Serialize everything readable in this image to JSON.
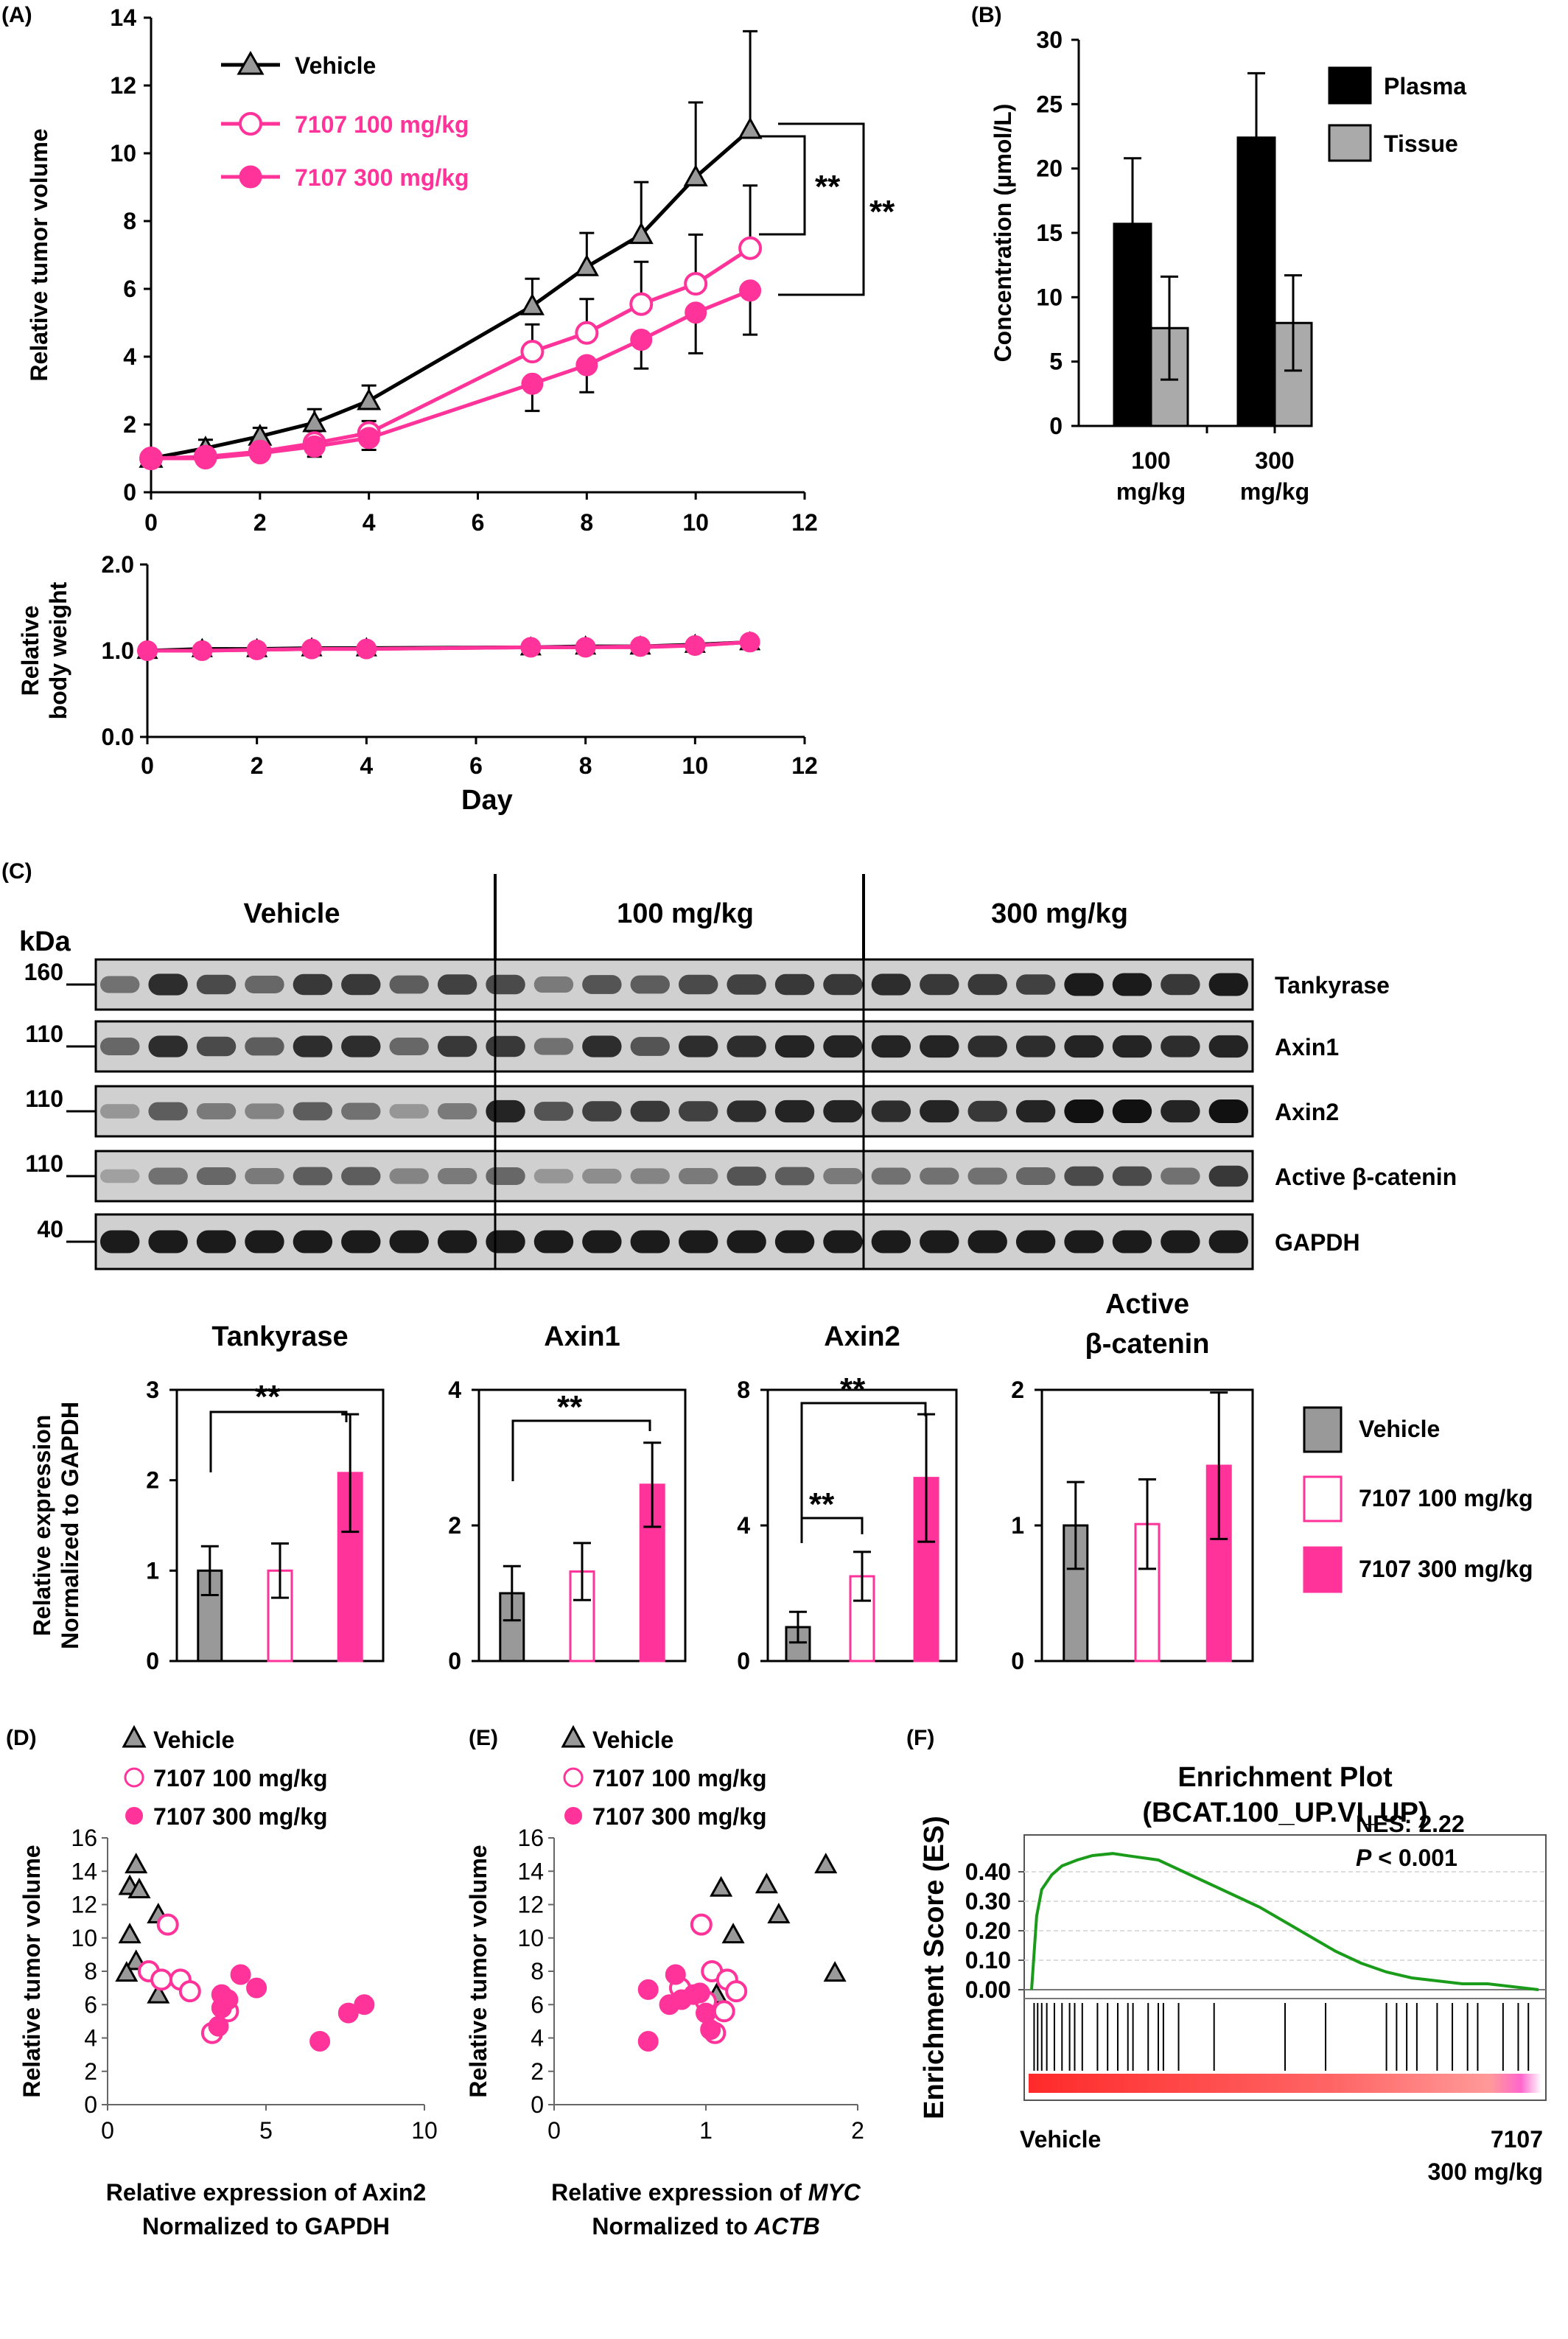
{
  "colors": {
    "vehicle": "#999999",
    "pink": "#ff3399",
    "black": "#000000",
    "gsea": "#1a9c1a"
  },
  "panels": {
    "A": "(A)",
    "B": "(B)",
    "C": "(C)",
    "D": "(D)",
    "E": "(E)",
    "F": "(F)"
  },
  "legend": {
    "vehicle": "Vehicle",
    "d100": "7107 100 mg/kg",
    "d300": "7107 300 mg/kg"
  },
  "sig": "**",
  "chart_data": [
    {
      "id": "A_tumor",
      "type": "line",
      "xlabel": "",
      "ylabel": "Relative tumor volume",
      "xlim": [
        0,
        12
      ],
      "ylim": [
        0,
        14
      ],
      "xticks": [
        "0",
        "2",
        "4",
        "6",
        "8",
        "10",
        "12"
      ],
      "yticks": [
        "0",
        "2",
        "4",
        "6",
        "8",
        "10",
        "12",
        "14"
      ],
      "x": [
        0,
        1,
        2,
        3,
        4,
        7,
        8,
        9,
        10,
        11
      ],
      "series": [
        {
          "name": "Vehicle",
          "values": [
            1.0,
            1.3,
            1.65,
            2.05,
            2.7,
            5.5,
            6.65,
            7.6,
            9.3,
            10.7
          ],
          "err": [
            0.1,
            0.25,
            0.25,
            0.4,
            0.45,
            0.8,
            1.0,
            1.55,
            2.2,
            2.9
          ]
        },
        {
          "name": "7107 100 mg/kg",
          "values": [
            1.0,
            1.05,
            1.2,
            1.45,
            1.75,
            4.15,
            4.7,
            5.55,
            6.15,
            7.2
          ],
          "err": [
            0.1,
            0.2,
            0.2,
            0.35,
            0.35,
            0.8,
            1.0,
            1.25,
            1.45,
            1.85
          ]
        },
        {
          "name": "7107 300 mg/kg",
          "values": [
            1.0,
            1.0,
            1.15,
            1.35,
            1.6,
            3.2,
            3.75,
            4.5,
            5.3,
            5.95
          ],
          "err": [
            0.1,
            0.2,
            0.2,
            0.3,
            0.35,
            0.8,
            0.8,
            0.85,
            1.2,
            1.3
          ]
        }
      ]
    },
    {
      "id": "A_bodyweight",
      "type": "line",
      "xlabel": "Day",
      "ylabel": "Relative body weight",
      "ylabel_lines": [
        "Relative",
        "body weight"
      ],
      "xlim": [
        0,
        12
      ],
      "ylim": [
        0,
        2
      ],
      "xticks": [
        "0",
        "2",
        "4",
        "6",
        "8",
        "10",
        "12"
      ],
      "yticks": [
        "0.0",
        "1.0",
        "2.0"
      ],
      "x": [
        0,
        1,
        2,
        3,
        4,
        7,
        8,
        9,
        10,
        11
      ],
      "series": [
        {
          "name": "Vehicle",
          "values": [
            1.0,
            1.02,
            1.02,
            1.03,
            1.03,
            1.04,
            1.05,
            1.05,
            1.07,
            1.1
          ]
        },
        {
          "name": "7107 100 mg/kg",
          "values": [
            1.0,
            1.0,
            1.01,
            1.02,
            1.02,
            1.04,
            1.04,
            1.05,
            1.06,
            1.1
          ]
        },
        {
          "name": "7107 300 mg/kg",
          "values": [
            1.0,
            1.0,
            1.01,
            1.02,
            1.02,
            1.04,
            1.04,
            1.04,
            1.06,
            1.1
          ]
        }
      ]
    },
    {
      "id": "B",
      "type": "bar",
      "ylabel": "Concentration (µmol/L)",
      "ylim": [
        0,
        30
      ],
      "yticks": [
        "0",
        "5",
        "10",
        "15",
        "20",
        "25",
        "30"
      ],
      "categories": [
        [
          "100",
          "mg/kg"
        ],
        [
          "300",
          "mg/kg"
        ]
      ],
      "series": [
        {
          "name": "Plasma",
          "values": [
            15.7,
            22.4
          ],
          "err": [
            5.1,
            5.0
          ]
        },
        {
          "name": "Tissue",
          "values": [
            7.6,
            8.0
          ],
          "err": [
            4.0,
            3.7
          ]
        }
      ]
    },
    {
      "id": "C_blot",
      "type": "table",
      "groups": [
        "Vehicle",
        "100 mg/kg",
        "300 mg/kg"
      ],
      "kda_label": "kDa",
      "bands": [
        {
          "kda": "160",
          "name": "Tankyrase"
        },
        {
          "kda": "110",
          "name": "Axin1"
        },
        {
          "kda": "110",
          "name": "Axin2"
        },
        {
          "kda": "110",
          "name": "Active β-catenin"
        },
        {
          "kda": "40",
          "name": "GAPDH"
        }
      ]
    },
    {
      "id": "C_quant",
      "type": "bar",
      "ylabel_lines": [
        "Relative expression",
        "Normalized to GAPDH"
      ],
      "categories": [
        "Vehicle",
        "7107 100 mg/kg",
        "7107 300 mg/kg"
      ],
      "subplots": [
        {
          "title": [
            "Tankyrase"
          ],
          "ylim": [
            0,
            3
          ],
          "yticks": [
            "0",
            "1",
            "2",
            "3"
          ],
          "values": [
            1.0,
            1.0,
            2.08
          ],
          "err": [
            0.27,
            0.3,
            0.65
          ]
        },
        {
          "title": [
            "Axin1"
          ],
          "ylim": [
            0,
            4
          ],
          "yticks": [
            "0",
            "2",
            "4"
          ],
          "values": [
            1.0,
            1.32,
            2.6
          ],
          "err": [
            0.4,
            0.42,
            0.62
          ]
        },
        {
          "title": [
            "Axin2"
          ],
          "ylim": [
            0,
            8
          ],
          "yticks": [
            "0",
            "4",
            "8"
          ],
          "values": [
            1.0,
            2.5,
            5.4
          ],
          "err": [
            0.45,
            0.72,
            1.88
          ]
        },
        {
          "title": [
            "Active",
            "β-catenin"
          ],
          "ylim": [
            0,
            2
          ],
          "yticks": [
            "0",
            "1",
            "2"
          ],
          "values": [
            1.0,
            1.01,
            1.44
          ],
          "err": [
            0.32,
            0.33,
            0.54
          ]
        }
      ]
    },
    {
      "id": "D",
      "type": "scatter",
      "xlabel_lines": [
        "Relative expression of Axin2",
        "Normalized to GAPDH"
      ],
      "ylabel": "Relative tumor volume",
      "xlim": [
        0,
        10
      ],
      "ylim": [
        0,
        16
      ],
      "xticks": [
        "0",
        "5",
        "10"
      ],
      "yticks": [
        "0",
        "2",
        "4",
        "6",
        "8",
        "10",
        "12",
        "14",
        "16"
      ],
      "series": [
        {
          "name": "Vehicle",
          "points": [
            [
              0.9,
              14.4
            ],
            [
              0.7,
              13.1
            ],
            [
              1.0,
              12.9
            ],
            [
              1.6,
              11.4
            ],
            [
              0.7,
              10.2
            ],
            [
              0.9,
              8.6
            ],
            [
              0.6,
              7.9
            ],
            [
              1.6,
              6.6
            ]
          ]
        },
        {
          "name": "7107 100 mg/kg",
          "points": [
            [
              1.9,
              10.8
            ],
            [
              1.3,
              8.0
            ],
            [
              1.7,
              7.5
            ],
            [
              2.3,
              7.5
            ],
            [
              2.6,
              6.8
            ],
            [
              3.8,
              5.6
            ],
            [
              3.3,
              4.3
            ]
          ]
        },
        {
          "name": "7107 300 mg/kg",
          "points": [
            [
              4.2,
              7.8
            ],
            [
              3.6,
              6.6
            ],
            [
              3.8,
              6.3
            ],
            [
              4.7,
              7.0
            ],
            [
              3.6,
              5.8
            ],
            [
              3.5,
              4.7
            ],
            [
              8.1,
              6.0
            ],
            [
              7.6,
              5.5
            ],
            [
              6.7,
              3.8
            ]
          ]
        }
      ]
    },
    {
      "id": "E",
      "type": "scatter",
      "xlabel_lines": [
        "Relative expression of MYC",
        "Normalized to ACTB"
      ],
      "ylabel": "Relative tumor volume",
      "xlim": [
        0,
        2
      ],
      "ylim": [
        0,
        16
      ],
      "xticks": [
        "0",
        "1",
        "2"
      ],
      "yticks": [
        "0",
        "2",
        "4",
        "6",
        "8",
        "10",
        "12",
        "14",
        "16"
      ],
      "series": [
        {
          "name": "Vehicle",
          "points": [
            [
              1.1,
              13.0
            ],
            [
              1.4,
              13.2
            ],
            [
              1.79,
              14.4
            ],
            [
              1.48,
              11.4
            ],
            [
              1.18,
              10.2
            ],
            [
              1.85,
              7.9
            ],
            [
              1.07,
              6.6
            ]
          ]
        },
        {
          "name": "7107 100 mg/kg",
          "points": [
            [
              0.97,
              10.8
            ],
            [
              1.04,
              8.0
            ],
            [
              1.14,
              7.5
            ],
            [
              0.83,
              7.0
            ],
            [
              1.2,
              6.8
            ],
            [
              1.0,
              6.2
            ],
            [
              1.12,
              5.6
            ],
            [
              1.06,
              4.3
            ]
          ]
        },
        {
          "name": "7107 300 mg/kg",
          "points": [
            [
              0.62,
              6.9
            ],
            [
              0.8,
              7.8
            ],
            [
              0.92,
              6.6
            ],
            [
              0.96,
              6.7
            ],
            [
              0.84,
              6.3
            ],
            [
              0.76,
              6.0
            ],
            [
              1.0,
              5.5
            ],
            [
              1.03,
              4.5
            ],
            [
              0.62,
              3.8
            ]
          ]
        }
      ]
    },
    {
      "id": "F",
      "type": "line",
      "title": [
        "Enrichment Plot",
        "(BCAT.100_UP.VI_UP)"
      ],
      "ylabel": "Enrichment Score (ES)",
      "ylim": [
        0,
        0.5
      ],
      "yticks": [
        "0.00",
        "0.10",
        "0.20",
        "0.30",
        "0.40"
      ],
      "annotation": {
        "nes": "NES: 2.22",
        "p_italic": "P",
        "p_rest": " < 0.001"
      },
      "x_left_label": "Vehicle",
      "x_right_label": [
        "7107",
        "300 mg/kg"
      ],
      "es_curve": [
        [
          0,
          0.0
        ],
        [
          0.01,
          0.25
        ],
        [
          0.02,
          0.34
        ],
        [
          0.04,
          0.39
        ],
        [
          0.06,
          0.42
        ],
        [
          0.09,
          0.44
        ],
        [
          0.12,
          0.455
        ],
        [
          0.16,
          0.462
        ],
        [
          0.2,
          0.452
        ],
        [
          0.25,
          0.44
        ],
        [
          0.3,
          0.4
        ],
        [
          0.35,
          0.36
        ],
        [
          0.4,
          0.32
        ],
        [
          0.45,
          0.28
        ],
        [
          0.5,
          0.23
        ],
        [
          0.55,
          0.18
        ],
        [
          0.6,
          0.13
        ],
        [
          0.65,
          0.09
        ],
        [
          0.7,
          0.06
        ],
        [
          0.75,
          0.04
        ],
        [
          0.8,
          0.03
        ],
        [
          0.85,
          0.02
        ],
        [
          0.9,
          0.02
        ],
        [
          0.95,
          0.01
        ],
        [
          1.0,
          0.0
        ]
      ],
      "hits": [
        0.005,
        0.012,
        0.02,
        0.03,
        0.045,
        0.06,
        0.075,
        0.085,
        0.1,
        0.13,
        0.15,
        0.17,
        0.19,
        0.2,
        0.23,
        0.25,
        0.26,
        0.29,
        0.36,
        0.5,
        0.58,
        0.7,
        0.72,
        0.74,
        0.76,
        0.8,
        0.83,
        0.86,
        0.88,
        0.93,
        0.96,
        0.98
      ]
    }
  ]
}
